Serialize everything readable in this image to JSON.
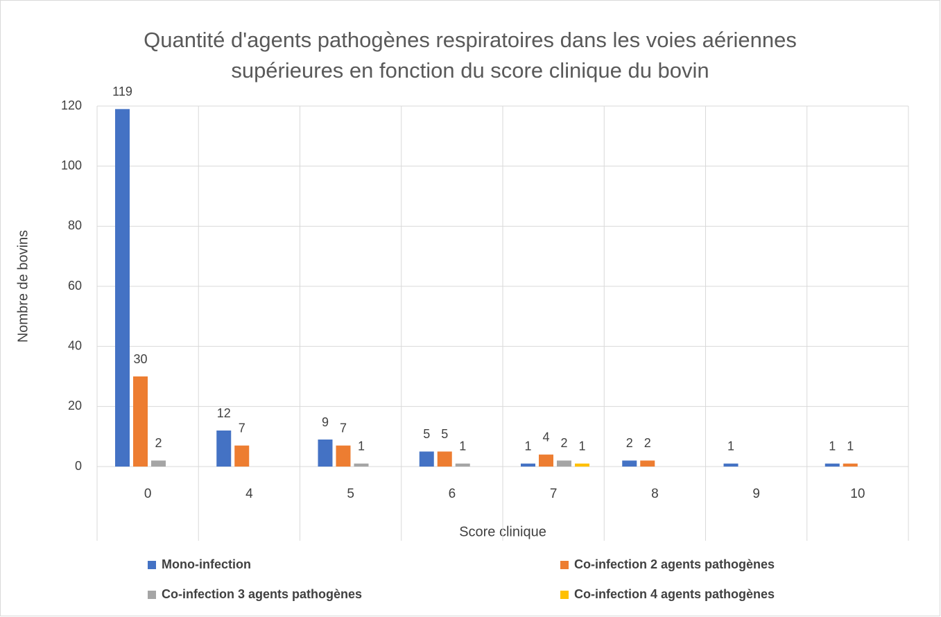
{
  "chart_data": {
    "type": "bar",
    "title": "Quantité d'agents pathogènes respiratoires dans les voies aériennes supérieures en fonction du score clinique du bovin",
    "xlabel": "Score clinique",
    "ylabel": "Nombre de bovins",
    "categories": [
      "0",
      "4",
      "5",
      "6",
      "7",
      "8",
      "9",
      "10"
    ],
    "series": [
      {
        "name": "Mono-infection",
        "color": "#4472c4",
        "values": [
          119,
          12,
          9,
          5,
          1,
          2,
          1,
          1
        ]
      },
      {
        "name": "Co-infection 2 agents pathogènes",
        "color": "#ed7d31",
        "values": [
          30,
          7,
          7,
          5,
          4,
          2,
          null,
          1
        ]
      },
      {
        "name": "Co-infection 3 agents pathogènes",
        "color": "#a5a5a5",
        "values": [
          2,
          null,
          1,
          1,
          2,
          null,
          null,
          null
        ]
      },
      {
        "name": "Co-infection 4 agents pathogènes",
        "color": "#ffc000",
        "values": [
          null,
          null,
          null,
          null,
          1,
          null,
          null,
          null
        ]
      }
    ],
    "ylim": [
      0,
      120
    ],
    "yticks": [
      0,
      20,
      40,
      60,
      80,
      100,
      120
    ],
    "grid": true,
    "legend": "bottom"
  }
}
